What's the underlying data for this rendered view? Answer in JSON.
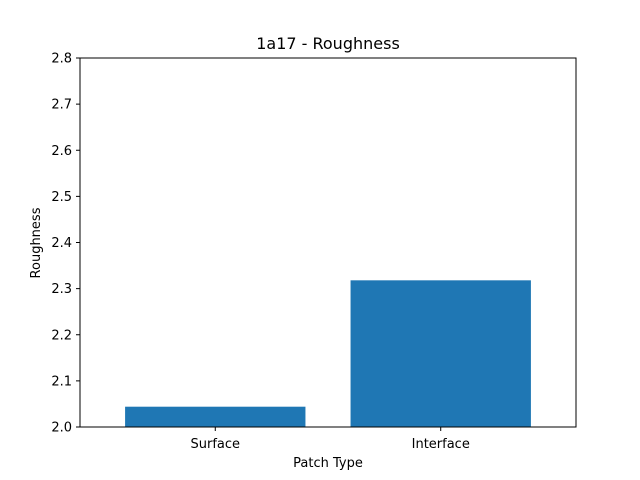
{
  "chart_data": {
    "type": "bar",
    "title": "1a17 - Roughness",
    "xlabel": "Patch Type",
    "ylabel": "Roughness",
    "categories": [
      "Surface",
      "Interface"
    ],
    "values": [
      2.044,
      2.318
    ],
    "ylim": [
      2.0,
      2.8
    ],
    "yticks": [
      "2.0",
      "2.1",
      "2.2",
      "2.3",
      "2.4",
      "2.5",
      "2.6",
      "2.7",
      "2.8"
    ],
    "grid": false,
    "bar_color": "#1f77b4"
  }
}
